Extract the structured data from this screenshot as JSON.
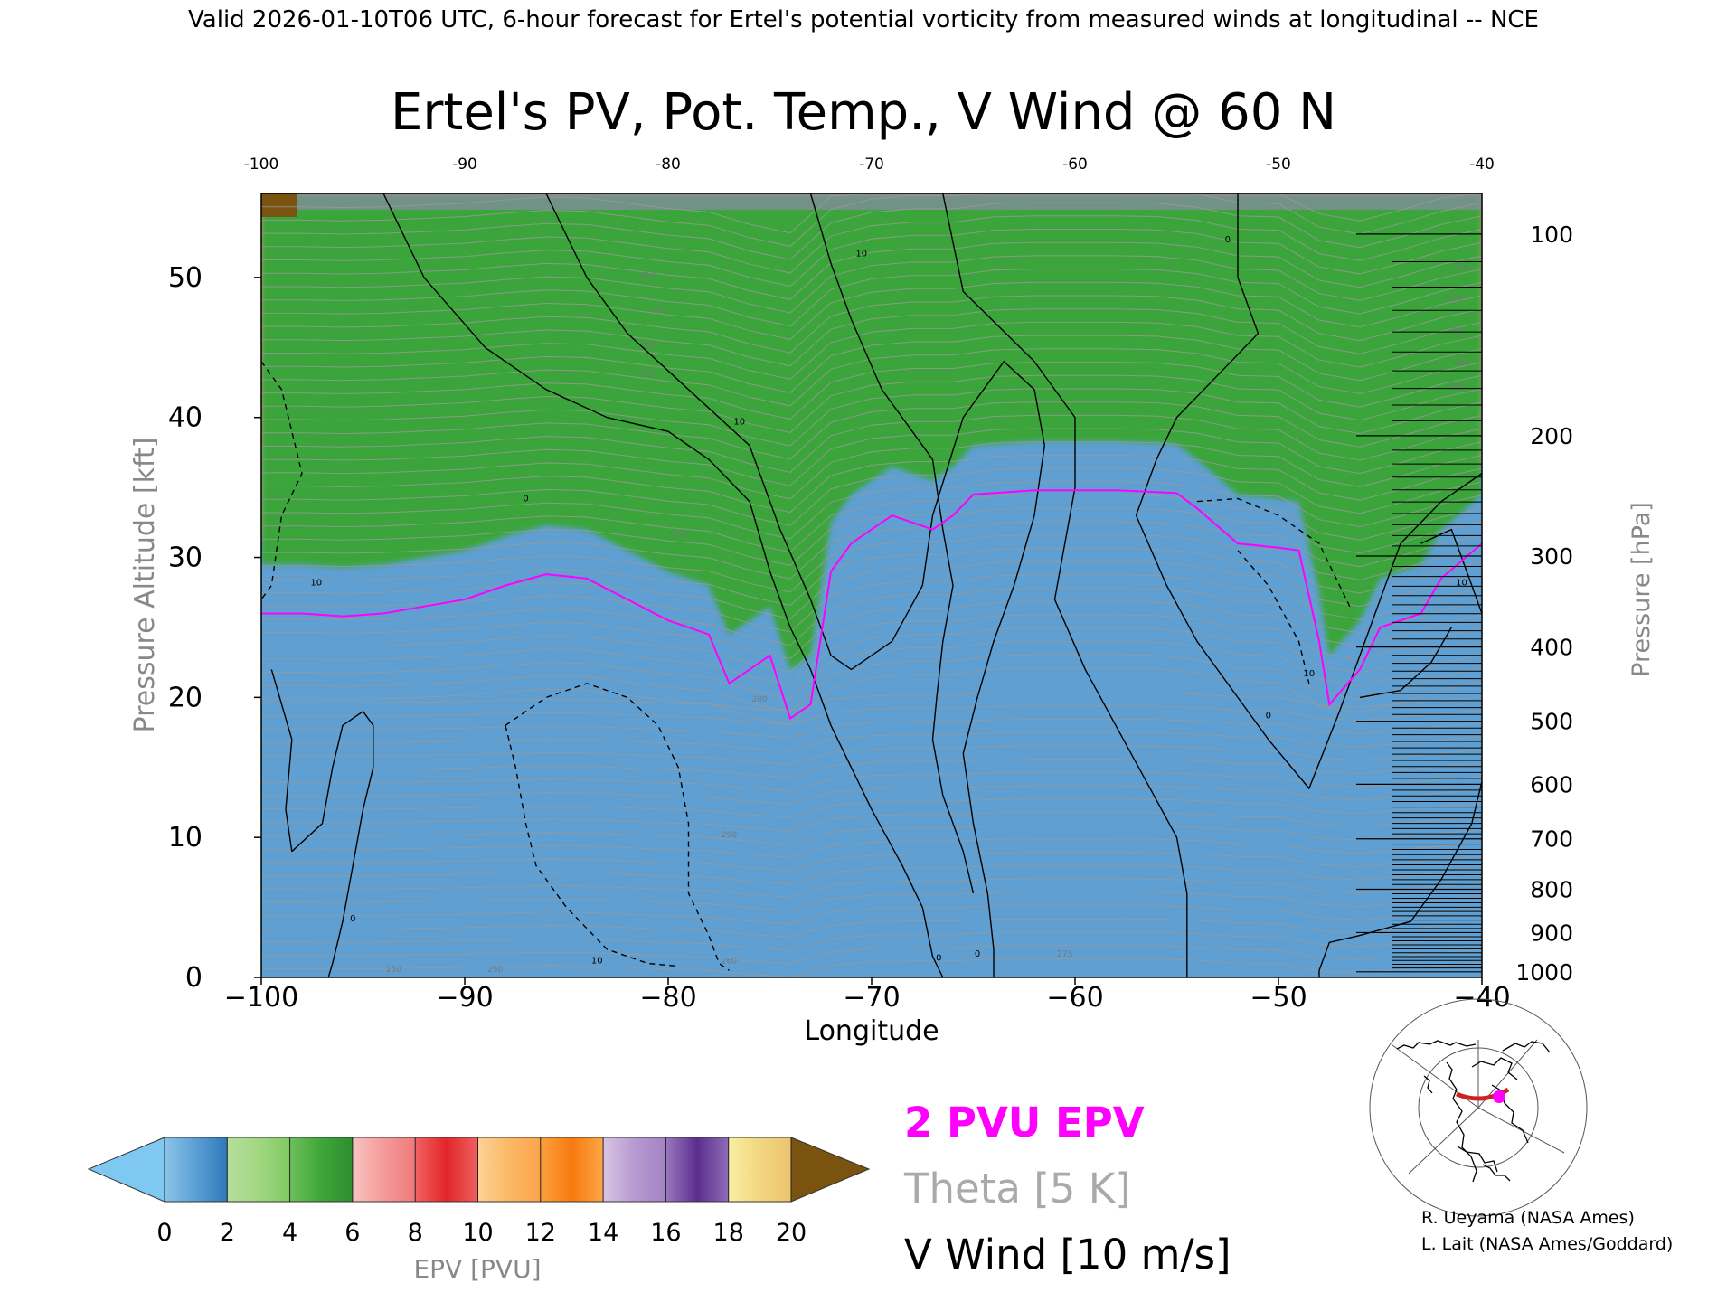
{
  "header_text": "Valid 2026-01-10T06 UTC, 6-hour forecast for Ertel's potential vorticity from measured winds at longitudinal -- NCE",
  "chart_data": {
    "type": "heatmap",
    "title": "Ertel's PV, Pot. Temp., V Wind @ 60 N",
    "xlabel": "Longitude",
    "ylabel": "Pressure Altitude [kft]",
    "y2label": "Pressure [hPa]",
    "xlim": [
      -100,
      -40
    ],
    "ylim": [
      0,
      56
    ],
    "x_ticks": [
      -100,
      -90,
      -80,
      -70,
      -60,
      -50,
      -40
    ],
    "x_tick_labels": [
      "−100",
      "−90",
      "−80",
      "−70",
      "−60",
      "−50",
      "−40"
    ],
    "top_ticks": [
      -100,
      -90,
      -80,
      -70,
      -60,
      -50,
      -40
    ],
    "top_tick_labels": [
      "-100",
      "-90",
      "-80",
      "-70",
      "-60",
      "-50",
      "-40"
    ],
    "y_ticks": [
      0,
      10,
      20,
      30,
      40,
      50
    ],
    "y_tick_labels": [
      "0",
      "10",
      "20",
      "30",
      "40",
      "50"
    ],
    "pressure_ticks": [
      {
        "hpa": 100,
        "kft": 53.1
      },
      {
        "hpa": 200,
        "kft": 38.7
      },
      {
        "hpa": 300,
        "kft": 30.1
      },
      {
        "hpa": 400,
        "kft": 23.6
      },
      {
        "hpa": 500,
        "kft": 18.3
      },
      {
        "hpa": 600,
        "kft": 13.8
      },
      {
        "hpa": 700,
        "kft": 9.9
      },
      {
        "hpa": 800,
        "kft": 6.3
      },
      {
        "hpa": 900,
        "kft": 3.2
      },
      {
        "hpa": 1000,
        "kft": 0.4
      }
    ],
    "pressure_minor_ticks_hpa": [
      110,
      120,
      130,
      140,
      150,
      160,
      170,
      180,
      190,
      210,
      220,
      230,
      240,
      250,
      260,
      270,
      280,
      290,
      310,
      320,
      330,
      340,
      350,
      360,
      370,
      380,
      390,
      410,
      420,
      430,
      440,
      450,
      460,
      470,
      480,
      490,
      510,
      520,
      530,
      540,
      550,
      560,
      570,
      580,
      590,
      610,
      620,
      630,
      640,
      650,
      660,
      670,
      680,
      690,
      710,
      720,
      730,
      740,
      750,
      760,
      770,
      780,
      790,
      810,
      820,
      830,
      840,
      850,
      860,
      870,
      880,
      890,
      910,
      920,
      930,
      940,
      950,
      960,
      970,
      980,
      990
    ],
    "colorbar": {
      "label": "EPV [PVU]",
      "ticks": [
        0,
        2,
        4,
        6,
        8,
        10,
        12,
        14,
        16,
        18,
        20
      ],
      "under_color": "#7ec8f2",
      "over_color": "#7a5310",
      "stops": [
        {
          "v": 0.0,
          "c": "#8cc4e8"
        },
        {
          "v": 1.0,
          "c": "#5c9fd4"
        },
        {
          "v": 2.0,
          "c": "#2f78bb"
        },
        {
          "v": 2.0,
          "c": "#b6de9c"
        },
        {
          "v": 3.0,
          "c": "#a2d882"
        },
        {
          "v": 4.0,
          "c": "#7fc860"
        },
        {
          "v": 4.0,
          "c": "#6cc05a"
        },
        {
          "v": 5.0,
          "c": "#3fa63a"
        },
        {
          "v": 6.0,
          "c": "#2e8e2e"
        },
        {
          "v": 6.0,
          "c": "#f7c4c0"
        },
        {
          "v": 7.0,
          "c": "#f59a9a"
        },
        {
          "v": 8.0,
          "c": "#ef7a7a"
        },
        {
          "v": 8.0,
          "c": "#f06262"
        },
        {
          "v": 9.0,
          "c": "#e2262a"
        },
        {
          "v": 10.0,
          "c": "#ef6060"
        },
        {
          "v": 10.0,
          "c": "#fbd296"
        },
        {
          "v": 11.0,
          "c": "#fbb866"
        },
        {
          "v": 12.0,
          "c": "#fca34a"
        },
        {
          "v": 12.0,
          "c": "#fca040"
        },
        {
          "v": 13.0,
          "c": "#f87a10"
        },
        {
          "v": 14.0,
          "c": "#fca648"
        },
        {
          "v": 14.0,
          "c": "#d8c4e4"
        },
        {
          "v": 15.0,
          "c": "#b79ad0"
        },
        {
          "v": 16.0,
          "c": "#a183c3"
        },
        {
          "v": 16.0,
          "c": "#9a78c0"
        },
        {
          "v": 17.0,
          "c": "#5c2e8e"
        },
        {
          "v": 18.0,
          "c": "#8e6cb8"
        },
        {
          "v": 18.0,
          "c": "#f8f0a0"
        },
        {
          "v": 19.0,
          "c": "#f2d680"
        },
        {
          "v": 20.0,
          "c": "#ecc470"
        }
      ]
    },
    "epv_2pvu_boundary_kft": [
      [
        -100,
        26
      ],
      [
        -98,
        26
      ],
      [
        -96,
        25.8
      ],
      [
        -94,
        26
      ],
      [
        -92,
        26.5
      ],
      [
        -90,
        27
      ],
      [
        -88,
        28
      ],
      [
        -86,
        28.8
      ],
      [
        -84,
        28.5
      ],
      [
        -82,
        27
      ],
      [
        -80,
        25.5
      ],
      [
        -78,
        24.5
      ],
      [
        -77,
        21
      ],
      [
        -75,
        23
      ],
      [
        -74,
        18.5
      ],
      [
        -73,
        19.5
      ],
      [
        -72,
        29
      ],
      [
        -71,
        31
      ],
      [
        -70,
        32
      ],
      [
        -69,
        33
      ],
      [
        -67,
        32
      ],
      [
        -66,
        33
      ],
      [
        -65,
        34.5
      ],
      [
        -62,
        34.8
      ],
      [
        -58,
        34.8
      ],
      [
        -55,
        34.6
      ],
      [
        -54,
        33.5
      ],
      [
        -52,
        31
      ],
      [
        -50,
        30.7
      ],
      [
        -49,
        30.5
      ],
      [
        -48,
        24
      ],
      [
        -47.5,
        19.5
      ],
      [
        -46,
        22
      ],
      [
        -45,
        25
      ],
      [
        -43,
        26
      ],
      [
        -42,
        28.5
      ],
      [
        -40,
        31
      ]
    ],
    "pv_bands": [
      {
        "name": "green",
        "above_2pvu_kft": 3.5
      },
      {
        "name": "pink",
        "above_2pvu_kft": 5.5
      },
      {
        "name": "red",
        "above_2pvu_kft": 12
      },
      {
        "name": "orange",
        "above_2pvu_kft": 20
      }
    ],
    "theta_interval_K": 5,
    "theta_labels": [
      {
        "text": "410",
        "lon": -81,
        "kft": 50
      },
      {
        "text": "400",
        "lon": -80.5,
        "kft": 47.5
      },
      {
        "text": "390",
        "lon": -81,
        "kft": 45
      },
      {
        "text": "380",
        "lon": -81,
        "kft": 43
      },
      {
        "text": "320",
        "lon": -79.5,
        "kft": 31.5
      },
      {
        "text": "280",
        "lon": -75.5,
        "kft": 19.7
      },
      {
        "text": "290",
        "lon": -77,
        "kft": 10
      },
      {
        "text": "275",
        "lon": -60.5,
        "kft": 1.5
      },
      {
        "text": "260",
        "lon": -77,
        "kft": 1
      },
      {
        "text": "250",
        "lon": -93.5,
        "kft": 0.4
      },
      {
        "text": "250",
        "lon": -88.5,
        "kft": 0.4
      },
      {
        "text": "410",
        "lon": -41,
        "kft": 50.5
      },
      {
        "text": "400",
        "lon": -41.3,
        "kft": 48.3
      },
      {
        "text": "390",
        "lon": -41.3,
        "kft": 46
      },
      {
        "text": "380",
        "lon": -41,
        "kft": 43.7
      },
      {
        "text": "370",
        "lon": -41.3,
        "kft": 42
      }
    ],
    "vwind_contours": [
      {
        "label": "0",
        "style": "solid",
        "points": [
          [
            -94,
            56
          ],
          [
            -92,
            50
          ],
          [
            -89,
            45
          ],
          [
            -86,
            42
          ],
          [
            -83,
            40
          ],
          [
            -80,
            39
          ],
          [
            -78,
            37
          ],
          [
            -76,
            34
          ],
          [
            -75,
            29
          ],
          [
            -74,
            25
          ],
          [
            -73,
            22
          ],
          [
            -72,
            18
          ],
          [
            -71,
            15
          ],
          [
            -70,
            12
          ],
          [
            -68.5,
            8
          ],
          [
            -67.5,
            5
          ],
          [
            -67,
            1.5
          ],
          [
            -66.5,
            0
          ]
        ]
      },
      {
        "label": "10",
        "style": "solid",
        "points": [
          [
            -86,
            56
          ],
          [
            -84,
            50
          ],
          [
            -82,
            46
          ],
          [
            -79,
            42
          ],
          [
            -76,
            38
          ],
          [
            -74.5,
            32
          ],
          [
            -73,
            27
          ],
          [
            -72,
            23
          ],
          [
            -71,
            22
          ],
          [
            -69,
            24
          ],
          [
            -67.5,
            28
          ],
          [
            -67,
            33
          ],
          [
            -65.5,
            40
          ],
          [
            -63.5,
            44
          ],
          [
            -62,
            42
          ],
          [
            -61.5,
            38
          ],
          [
            -62,
            33
          ],
          [
            -63,
            28
          ],
          [
            -64,
            24
          ],
          [
            -64.8,
            20
          ],
          [
            -65.5,
            16
          ],
          [
            -65,
            11
          ],
          [
            -64.3,
            6
          ],
          [
            -64,
            2
          ],
          [
            -64,
            0
          ]
        ]
      },
      {
        "label": "10",
        "style": "solid",
        "points": [
          [
            -73,
            56
          ],
          [
            -72,
            51
          ],
          [
            -71,
            47
          ],
          [
            -69.5,
            42
          ],
          [
            -68,
            39
          ],
          [
            -67,
            37
          ],
          [
            -66.5,
            32
          ],
          [
            -66,
            28
          ],
          [
            -66.5,
            24
          ],
          [
            -66.8,
            20
          ],
          [
            -67,
            17
          ],
          [
            -66.5,
            13
          ],
          [
            -65.5,
            9
          ],
          [
            -65,
            6
          ]
        ]
      },
      {
        "label": "10",
        "style": "solid",
        "points": [
          [
            -66.5,
            56
          ],
          [
            -65.5,
            49
          ],
          [
            -62,
            44
          ],
          [
            -60,
            40
          ],
          [
            -60,
            35
          ],
          [
            -61,
            27
          ],
          [
            -59.5,
            22
          ],
          [
            -58,
            18
          ],
          [
            -56.5,
            14
          ],
          [
            -55,
            10
          ],
          [
            -54.5,
            6
          ],
          [
            -54.5,
            0
          ]
        ]
      },
      {
        "label": "0",
        "style": "solid",
        "points": [
          [
            -52,
            56
          ],
          [
            -52,
            50
          ],
          [
            -51,
            46
          ],
          [
            -53,
            43
          ],
          [
            -55,
            40
          ],
          [
            -56,
            37
          ],
          [
            -57,
            33
          ],
          [
            -55.5,
            28
          ],
          [
            -54,
            24
          ],
          [
            -52,
            20
          ],
          [
            -50.5,
            17
          ],
          [
            -48.5,
            13.5
          ],
          [
            -47,
            19
          ],
          [
            -45.5,
            25
          ],
          [
            -44,
            31
          ],
          [
            -42,
            34
          ],
          [
            -40,
            36
          ]
        ]
      },
      {
        "label": "10",
        "style": "solid",
        "points": [
          [
            -43,
            31
          ],
          [
            -41.5,
            32
          ],
          [
            -40.5,
            28
          ],
          [
            -40,
            26
          ]
        ]
      },
      {
        "label": "10",
        "style": "solid",
        "points": [
          [
            -46,
            20
          ],
          [
            -44,
            20.5
          ],
          [
            -42.5,
            22.5
          ],
          [
            -41.5,
            25
          ]
        ]
      },
      {
        "label": "0",
        "style": "solid",
        "points": [
          [
            -40,
            14
          ],
          [
            -40.5,
            11
          ],
          [
            -42,
            7
          ],
          [
            -43.5,
            4
          ],
          [
            -46,
            3
          ],
          [
            -47.5,
            2.5
          ],
          [
            -48,
            0.5
          ],
          [
            -48,
            0
          ]
        ]
      },
      {
        "label": "0",
        "style": "solid",
        "points": [
          [
            -99.5,
            22
          ],
          [
            -98.5,
            17
          ],
          [
            -98.8,
            12
          ],
          [
            -98.5,
            9
          ]
        ]
      },
      {
        "label": "0",
        "style": "solid",
        "points": [
          [
            -98.5,
            9
          ],
          [
            -97,
            11
          ],
          [
            -96.5,
            15
          ],
          [
            -96,
            18
          ],
          [
            -95,
            19
          ],
          [
            -94.5,
            18
          ],
          [
            -94.5,
            15
          ],
          [
            -95,
            12
          ],
          [
            -95.5,
            8
          ],
          [
            -96,
            4
          ],
          [
            -96.5,
            1
          ],
          [
            -96.7,
            0
          ]
        ]
      },
      {
        "label": "-10",
        "style": "dashed",
        "points": [
          [
            -100,
            44
          ],
          [
            -99,
            42
          ],
          [
            -98.5,
            39
          ],
          [
            -98,
            36
          ],
          [
            -99,
            33
          ],
          [
            -99.5,
            28
          ],
          [
            -100,
            27
          ]
        ]
      },
      {
        "label": "-10",
        "style": "dashed",
        "points": [
          [
            -88,
            18
          ],
          [
            -86,
            20
          ],
          [
            -84,
            21
          ],
          [
            -82,
            20
          ],
          [
            -80.5,
            18
          ],
          [
            -79.5,
            15
          ],
          [
            -79,
            11
          ],
          [
            -79,
            6
          ],
          [
            -78,
            3
          ],
          [
            -77.5,
            1
          ],
          [
            -77,
            0.5
          ]
        ]
      },
      {
        "label": "-10",
        "style": "dashed",
        "points": [
          [
            -88,
            18
          ],
          [
            -87.5,
            15
          ],
          [
            -87,
            11
          ],
          [
            -86.5,
            8
          ],
          [
            -85,
            5
          ],
          [
            -83,
            2
          ],
          [
            -81,
            1
          ],
          [
            -79.5,
            0.8
          ]
        ]
      },
      {
        "label": "-10",
        "style": "dashed",
        "points": [
          [
            -54,
            34
          ],
          [
            -52,
            34.2
          ],
          [
            -50,
            33
          ],
          [
            -48,
            31
          ],
          [
            -47,
            28
          ],
          [
            -46.5,
            26.5
          ]
        ]
      },
      {
        "label": "-10",
        "style": "dashed",
        "points": [
          [
            -52,
            30.5
          ],
          [
            -50.5,
            28
          ],
          [
            -49,
            24
          ],
          [
            -48.5,
            21
          ]
        ]
      }
    ],
    "vwind_labels": [
      {
        "text": "10",
        "lon": -97.3,
        "kft": 28
      },
      {
        "text": "0",
        "lon": -95.5,
        "kft": 4
      },
      {
        "text": "0",
        "lon": -87,
        "kft": 34
      },
      {
        "text": "10",
        "lon": -76.5,
        "kft": 39.5
      },
      {
        "text": "10",
        "lon": -70.5,
        "kft": 51.5
      },
      {
        "text": "0",
        "lon": -52.5,
        "kft": 52.5
      },
      {
        "text": "0",
        "lon": -50.5,
        "kft": 18.5
      },
      {
        "text": "10",
        "lon": -48.5,
        "kft": 21.5
      },
      {
        "text": "10",
        "lon": -41,
        "kft": 28
      },
      {
        "text": "0",
        "lon": -66.7,
        "kft": 1.2
      },
      {
        "text": "0",
        "lon": -64.8,
        "kft": 1.5
      },
      {
        "text": "10",
        "lon": -83.5,
        "kft": 1
      }
    ],
    "legend": [
      {
        "text": "2 PVU EPV",
        "color": "#ff00ff"
      },
      {
        "text": "Theta [5 K]",
        "color": "#aaaaaa"
      },
      {
        "text": "V Wind [10 m/s]",
        "color": "#000000"
      }
    ]
  },
  "credits": [
    "R. Ueyama (NASA Ames)",
    "L. Lait (NASA Ames/Goddard)"
  ],
  "colors": {
    "epv_2pvu": "#ff00ff",
    "theta": "#9a9a9a",
    "vwind": "#000000",
    "map_track": "#cc2222",
    "map_point": "#ff00ff"
  }
}
